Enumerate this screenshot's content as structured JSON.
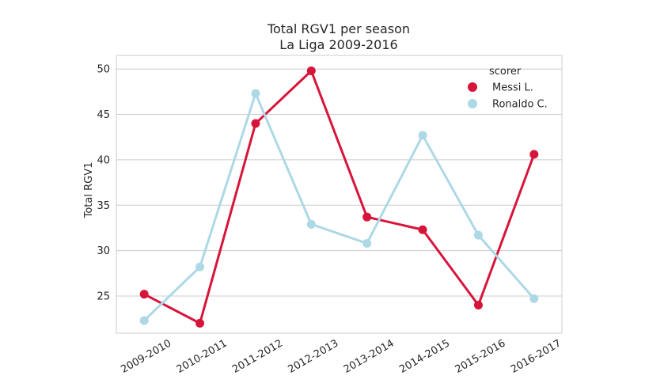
{
  "chart_data": {
    "type": "line",
    "title": "Total RGV1 per season",
    "subtitle": "La Liga 2009-2016",
    "xlabel": "",
    "ylabel": "Total RGV1",
    "categories": [
      "2009-2010",
      "2010-2011",
      "2011-2012",
      "2012-2013",
      "2013-2014",
      "2014-2015",
      "2015-2016",
      "2016-2017"
    ],
    "yticks": [
      25,
      30,
      35,
      40,
      45,
      50
    ],
    "ylim": [
      20.9,
      51.5
    ],
    "grid": "horizontal",
    "legend": {
      "title": "scorer",
      "placement": "top-right"
    },
    "series": [
      {
        "name": "Messi L.",
        "color": "#d7153a",
        "values": [
          25.2,
          22.0,
          44.0,
          49.8,
          33.7,
          32.3,
          24.0,
          40.6
        ]
      },
      {
        "name": "Ronaldo C.",
        "color": "#add8e6",
        "values": [
          22.3,
          28.2,
          47.3,
          32.9,
          30.8,
          42.7,
          31.7,
          24.7
        ]
      }
    ]
  }
}
